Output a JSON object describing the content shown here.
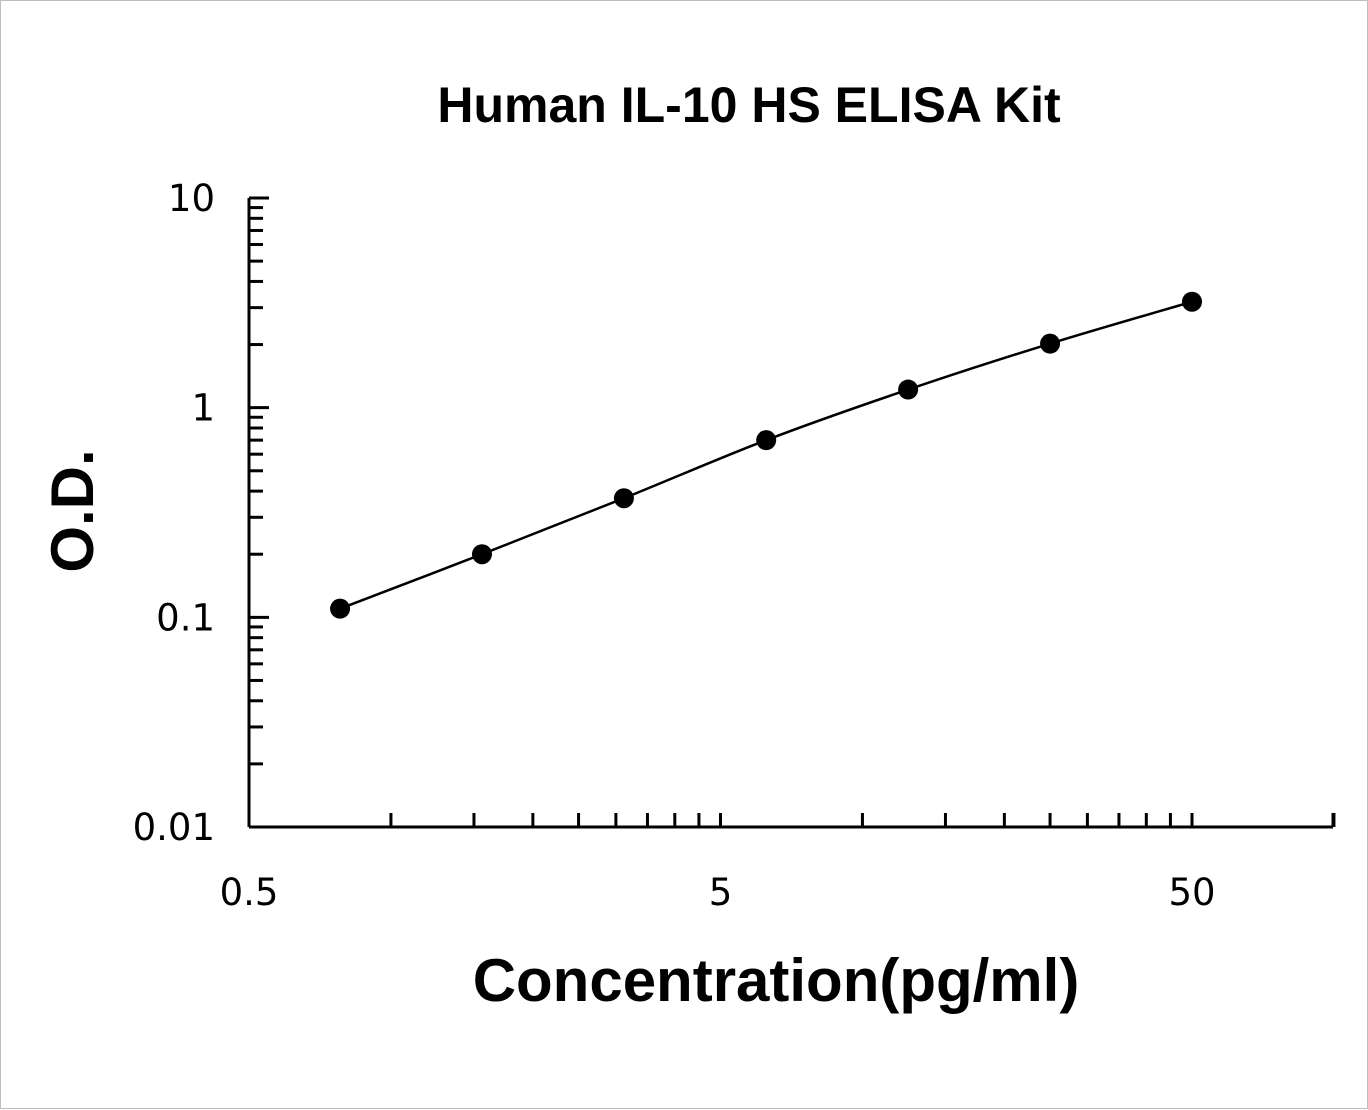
{
  "chart_data": {
    "type": "line",
    "title": "Human IL-10 HS ELISA Kit",
    "xlabel": "Concentration(pg/ml)",
    "ylabel": "O.D.",
    "x_scale": "log",
    "y_scale": "log",
    "xlim": [
      0.5,
      80
    ],
    "ylim": [
      0.01,
      10
    ],
    "x_ticks": [
      0.5,
      5,
      50
    ],
    "x_tick_labels": [
      "0.5",
      "5",
      "50"
    ],
    "y_ticks": [
      0.01,
      0.1,
      1,
      10
    ],
    "y_tick_labels": [
      "0.01",
      "0.1",
      "1",
      "10"
    ],
    "grid": false,
    "legend": "none",
    "series": [
      {
        "x": [
          0.78,
          1.56,
          3.12,
          6.25,
          12.5,
          25,
          50
        ],
        "y": [
          0.11,
          0.2,
          0.37,
          0.7,
          1.22,
          2.02,
          3.2
        ],
        "marker": "circle",
        "color": "#000000"
      }
    ]
  }
}
